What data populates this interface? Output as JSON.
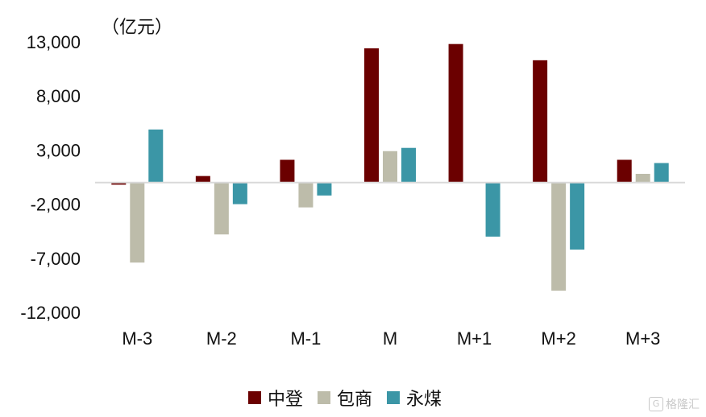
{
  "chart_data": {
    "type": "bar",
    "unit_label": "（亿元）",
    "categories": [
      "M-3",
      "M-2",
      "M-1",
      "M",
      "M+1",
      "M+2",
      "M+3"
    ],
    "series": [
      {
        "name": "中登",
        "color": "#6b0000",
        "values": [
          -200,
          600,
          2100,
          12400,
          12800,
          11300,
          2100
        ]
      },
      {
        "name": "包商",
        "color": "#bdbcaa",
        "values": [
          -7400,
          -4800,
          -2300,
          2900,
          0,
          -10000,
          800
        ]
      },
      {
        "name": "永煤",
        "color": "#3b96a6",
        "values": [
          4900,
          -2000,
          -1200,
          3200,
          -5000,
          -6200,
          1800
        ]
      }
    ],
    "yticks": [
      13000,
      8000,
      3000,
      -2000,
      -7000,
      -12000
    ],
    "ytick_labels": [
      "13,000",
      "8,000",
      "3,000",
      "-2,000",
      "-7,000",
      "-12,000"
    ],
    "ylim": [
      -12000,
      13000
    ],
    "grid": false,
    "legend_position": "bottom"
  },
  "watermark": {
    "text": "格隆汇",
    "icon": "logo-icon"
  }
}
